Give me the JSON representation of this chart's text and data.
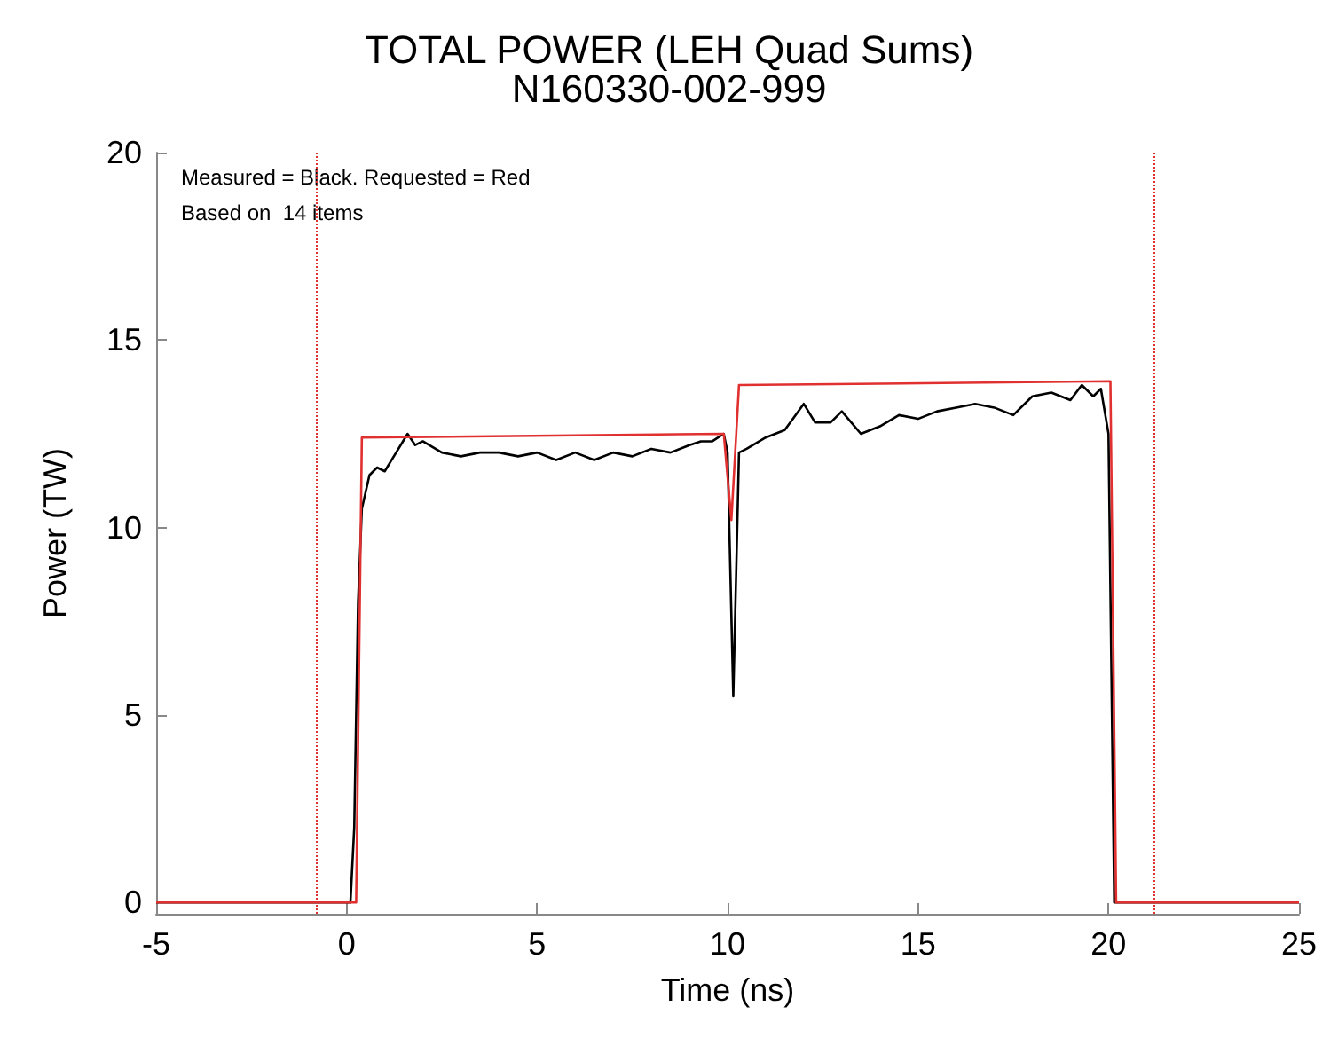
{
  "chart_data": {
    "type": "line",
    "title": "TOTAL POWER (LEH Quad Sums)",
    "subtitle": "N160330-002-999",
    "xlabel": "Time (ns)",
    "ylabel": "Power (TW)",
    "annotations": [
      "Measured = Black. Requested = Red",
      "Based on  14 items"
    ],
    "xlim": [
      -5,
      25
    ],
    "xticks": [
      -5,
      0,
      5,
      10,
      15,
      20,
      25
    ],
    "ylim": [
      -0.3,
      20
    ],
    "yticks": [
      0,
      5,
      10,
      15,
      20
    ],
    "grid": false,
    "marker": "none",
    "series": [
      {
        "color": "#000000",
        "x": [
          -5,
          0.1,
          0.2,
          0.3,
          0.4,
          0.6,
          0.8,
          1.0,
          1.3,
          1.6,
          1.8,
          2.0,
          2.5,
          3,
          3.5,
          4,
          4.5,
          5,
          5.5,
          6,
          6.5,
          7,
          7.5,
          8,
          8.5,
          9,
          9.3,
          9.6,
          9.9,
          10.0,
          10.15,
          10.3,
          10.5,
          11,
          11.5,
          12,
          12.3,
          12.7,
          13,
          13.5,
          14,
          14.5,
          15,
          15.5,
          16,
          16.5,
          17,
          17.5,
          18,
          18.5,
          19,
          19.3,
          19.6,
          19.8,
          20.0,
          20.15,
          25
        ],
        "values": [
          0,
          0,
          2,
          8,
          10.5,
          11.4,
          11.6,
          11.5,
          12.0,
          12.5,
          12.2,
          12.3,
          12.0,
          11.9,
          12.0,
          12.0,
          11.9,
          12.0,
          11.8,
          12.0,
          11.8,
          12.0,
          11.9,
          12.1,
          12.0,
          12.2,
          12.3,
          12.3,
          12.5,
          12.0,
          5.5,
          12.0,
          12.1,
          12.4,
          12.6,
          13.3,
          12.8,
          12.8,
          13.1,
          12.5,
          12.7,
          13.0,
          12.9,
          13.1,
          13.2,
          13.3,
          13.2,
          13.0,
          13.5,
          13.6,
          13.4,
          13.8,
          13.5,
          13.7,
          12.5,
          0,
          0
        ]
      },
      {
        "color": "#e03030",
        "x": [
          -5,
          0.25,
          0.4,
          9.9,
          10.1,
          10.3,
          20.05,
          20.2,
          25
        ],
        "values": [
          0,
          0,
          12.4,
          12.5,
          10.2,
          13.8,
          13.9,
          0,
          0
        ]
      }
    ],
    "ref_lines": [
      {
        "axis": "x",
        "value": -0.8,
        "color": "#e03030",
        "line_style": "dotted"
      },
      {
        "axis": "x",
        "value": 21.2,
        "color": "#e03030",
        "line_style": "dotted"
      }
    ]
  }
}
